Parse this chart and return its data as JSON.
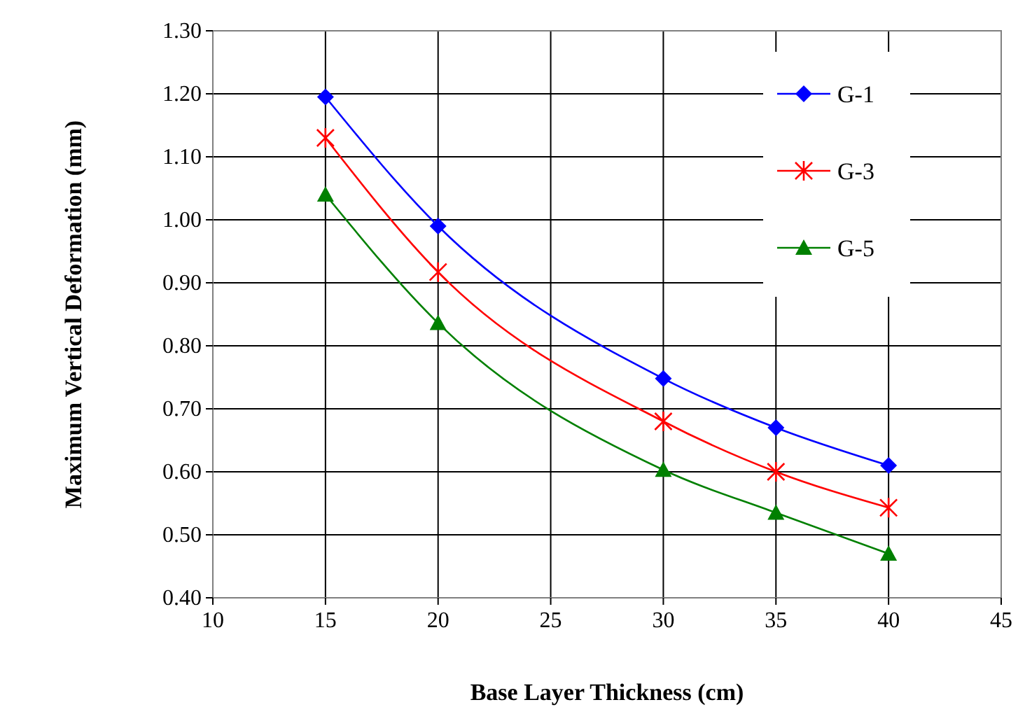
{
  "chart_data": {
    "type": "line",
    "xlabel": "Base Layer Thickness (cm)",
    "ylabel": "Maximum Vertical Deformation (mm)",
    "x": [
      15,
      20,
      30,
      35,
      40
    ],
    "series": [
      {
        "name": "G-1",
        "color": "#0000ff",
        "marker": "diamond",
        "values": [
          1.195,
          0.99,
          0.748,
          0.67,
          0.61
        ]
      },
      {
        "name": "G-3",
        "color": "#ff0000",
        "marker": "cross",
        "values": [
          1.13,
          0.917,
          0.68,
          0.6,
          0.543
        ]
      },
      {
        "name": "G-5",
        "color": "#008000",
        "marker": "triangle",
        "values": [
          1.04,
          0.836,
          0.603,
          0.535,
          0.47
        ]
      }
    ],
    "xlim": [
      10,
      45
    ],
    "xticks": [
      10,
      15,
      20,
      25,
      30,
      35,
      40,
      45
    ],
    "ylim": [
      0.4,
      1.3
    ],
    "yticks": [
      {
        "value": 0.4,
        "label": "0.40"
      },
      {
        "value": 0.5,
        "label": "0.50"
      },
      {
        "value": 0.6,
        "label": "0.60"
      },
      {
        "value": 0.7,
        "label": "0.70"
      },
      {
        "value": 0.8,
        "label": "0.80"
      },
      {
        "value": 0.9,
        "label": "0.90"
      },
      {
        "value": 1.0,
        "label": "1.00"
      },
      {
        "value": 1.1,
        "label": "1.10"
      },
      {
        "value": 1.2,
        "label": "1.20"
      },
      {
        "value": 1.3,
        "label": "1.30"
      }
    ],
    "grid": true,
    "legend": "top right",
    "line_style": "solid"
  }
}
